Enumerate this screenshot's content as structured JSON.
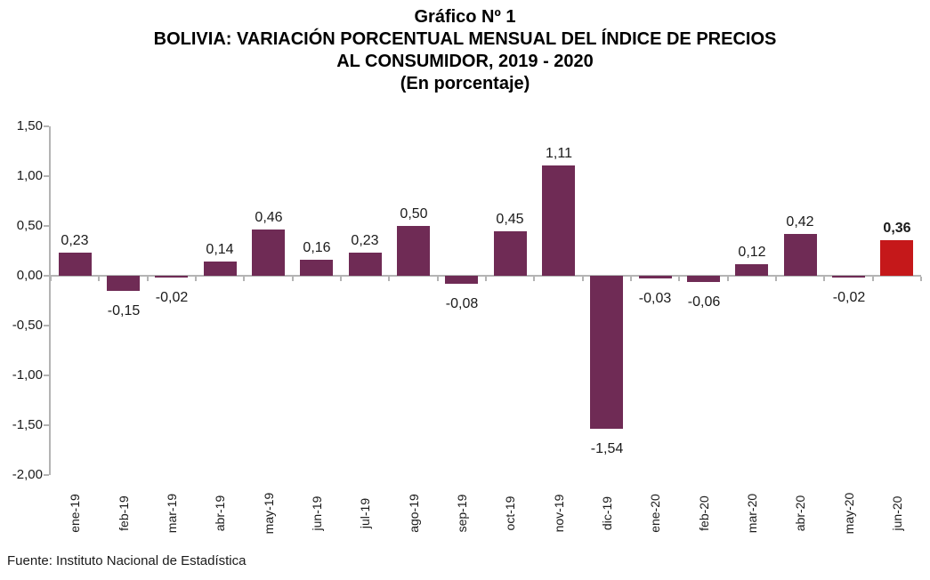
{
  "title": {
    "line1": "Gráfico Nº 1",
    "line2": "BOLIVIA: VARIACIÓN PORCENTUAL MENSUAL DEL ÍNDICE DE PRECIOS",
    "line3": "AL CONSUMIDOR, 2019 - 2020",
    "line4": "(En porcentaje)"
  },
  "chart_data": {
    "type": "bar",
    "title": "Gráfico Nº 1 - BOLIVIA: VARIACIÓN PORCENTUAL MENSUAL DEL ÍNDICE DE PRECIOS AL CONSUMIDOR, 2019 - 2020 (En porcentaje)",
    "categories": [
      "ene-19",
      "feb-19",
      "mar-19",
      "abr-19",
      "may-19",
      "jun-19",
      "jul-19",
      "ago-19",
      "sep-19",
      "oct-19",
      "nov-19",
      "dic-19",
      "ene-20",
      "feb-20",
      "mar-20",
      "abr-20",
      "may-20",
      "jun-20"
    ],
    "values": [
      0.23,
      -0.15,
      -0.02,
      0.14,
      0.46,
      0.16,
      0.23,
      0.5,
      -0.08,
      0.45,
      1.11,
      -1.54,
      -0.03,
      -0.06,
      0.12,
      0.42,
      -0.02,
      0.36
    ],
    "value_labels": [
      "0,23",
      "-0,15",
      "-0,02",
      "0,14",
      "0,46",
      "0,16",
      "0,23",
      "0,50",
      "-0,08",
      "0,45",
      "1,11",
      "-1,54",
      "-0,03",
      "-0,06",
      "0,12",
      "0,42",
      "-0,02",
      "0,36"
    ],
    "ylim": [
      -2.0,
      1.5
    ],
    "ytick_labels": [
      "1,50",
      "1,00",
      "0,50",
      "0,00",
      "-0,50",
      "-1,00",
      "-1,50",
      "-2,00"
    ],
    "xlabel": "",
    "ylabel": "",
    "grid": false,
    "legend": false,
    "bar_color": "#6F2B55",
    "highlight_color": "#C5181A",
    "highlight_index": 17,
    "axis_color": "#B4B4B4"
  },
  "footer": {
    "source": "Fuente: Instituto Nacional de Estadística"
  }
}
